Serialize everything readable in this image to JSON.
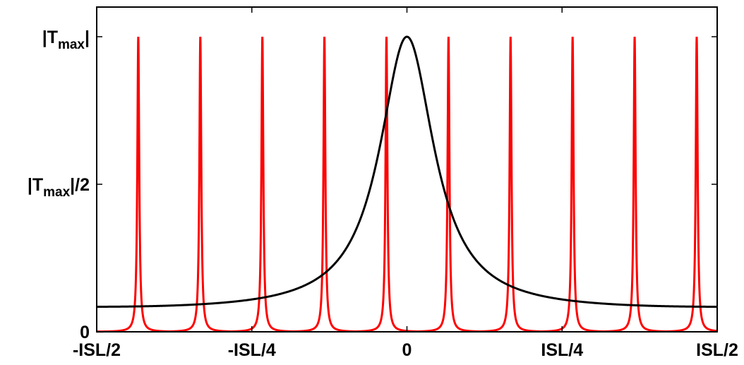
{
  "chart_data": {
    "type": "line",
    "title": "",
    "xlabel": "",
    "ylabel": "",
    "xlim": [
      -0.5,
      0.5
    ],
    "ylim": [
      0,
      1
    ],
    "x_unit": "ISL",
    "grid": false,
    "legend": "none",
    "xticks": [
      {
        "value": -0.5,
        "label": "-ISL/2"
      },
      {
        "value": -0.25,
        "label": "-ISL/4"
      },
      {
        "value": 0,
        "label": "0"
      },
      {
        "value": 0.25,
        "label": "ISL/4"
      },
      {
        "value": 0.5,
        "label": "ISL/2"
      }
    ],
    "yticks": [
      {
        "value": 0,
        "label": "0"
      },
      {
        "value": 0.5,
        "label_main": "|T",
        "label_sub": "max",
        "label_tail": "|/2"
      },
      {
        "value": 1,
        "label_main": "|T",
        "label_sub": "max",
        "label_tail": "|"
      }
    ],
    "series": [
      {
        "color": "#ff0000",
        "style": "periodic Lorentzian comb",
        "peak_positions": [
          -0.433,
          -0.333,
          -0.233,
          -0.133,
          -0.033,
          0.067,
          0.167,
          0.267,
          0.367,
          0.467
        ],
        "peak_value": 1.0,
        "baseline_value": 0.0
      },
      {
        "color": "#000000",
        "style": "broad Airy resonance",
        "peak_position": 0,
        "peak_value": 1.0,
        "edge_value": 0.085,
        "points": [
          {
            "x": -0.5,
            "y": 0.085
          },
          {
            "x": -0.45,
            "y": 0.09
          },
          {
            "x": -0.4,
            "y": 0.102
          },
          {
            "x": -0.35,
            "y": 0.121
          },
          {
            "x": -0.3,
            "y": 0.149
          },
          {
            "x": -0.25,
            "y": 0.19
          },
          {
            "x": -0.2,
            "y": 0.255
          },
          {
            "x": -0.15,
            "y": 0.37
          },
          {
            "x": -0.1,
            "y": 0.56
          },
          {
            "x": -0.05,
            "y": 0.86
          },
          {
            "x": 0,
            "y": 1.0
          },
          {
            "x": 0.05,
            "y": 0.86
          },
          {
            "x": 0.1,
            "y": 0.56
          },
          {
            "x": 0.15,
            "y": 0.37
          },
          {
            "x": 0.2,
            "y": 0.255
          },
          {
            "x": 0.25,
            "y": 0.19
          },
          {
            "x": 0.3,
            "y": 0.149
          },
          {
            "x": 0.35,
            "y": 0.121
          },
          {
            "x": 0.4,
            "y": 0.102
          },
          {
            "x": 0.45,
            "y": 0.09
          },
          {
            "x": 0.5,
            "y": 0.085
          }
        ]
      }
    ]
  }
}
